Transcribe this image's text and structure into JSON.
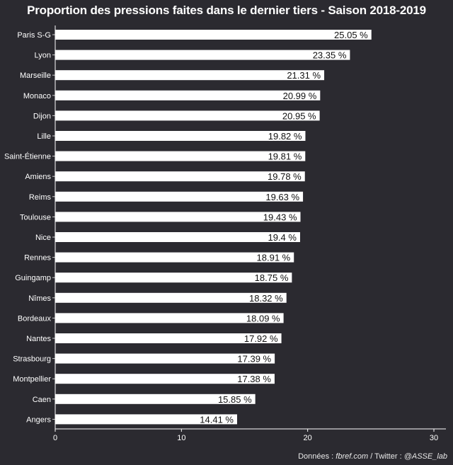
{
  "chart_data": {
    "type": "bar",
    "orientation": "horizontal",
    "title": "Proportion des pressions faites dans le dernier tiers - Saison 2018-2019",
    "categories": [
      "Paris S-G",
      "Lyon",
      "Marseille",
      "Monaco",
      "Dijon",
      "Lille",
      "Saint-Étienne",
      "Amiens",
      "Reims",
      "Toulouse",
      "Nice",
      "Rennes",
      "Guingamp",
      "Nîmes",
      "Bordeaux",
      "Nantes",
      "Strasbourg",
      "Montpellier",
      "Caen",
      "Angers"
    ],
    "values": [
      25.05,
      23.35,
      21.31,
      20.99,
      20.95,
      19.82,
      19.81,
      19.78,
      19.63,
      19.43,
      19.4,
      18.91,
      18.75,
      18.32,
      18.09,
      17.92,
      17.39,
      17.38,
      15.85,
      14.41
    ],
    "value_labels": [
      "25.05 %",
      "23.35 %",
      "21.31 %",
      "20.99 %",
      "20.95 %",
      "19.82 %",
      "19.81 %",
      "19.78 %",
      "19.63 %",
      "19.43 %",
      "19.4 %",
      "18.91 %",
      "18.75 %",
      "18.32 %",
      "18.09 %",
      "17.92 %",
      "17.39 %",
      "17.38 %",
      "15.85 %",
      "14.41 %"
    ],
    "xlim": [
      0,
      30
    ],
    "x_ticks": [
      0,
      10,
      20,
      30
    ],
    "x_tick_labels": [
      "0",
      "10",
      "20",
      "30"
    ],
    "grid": false,
    "bar_color": "#ffffff",
    "label_color": "#111111",
    "background": "#2b2a30",
    "text_color": "#ffffff"
  },
  "caption": {
    "prefix": "Données : ",
    "source": "fbref.com",
    "middle": " / Twitter : ",
    "handle": "@ASSE_lab"
  }
}
